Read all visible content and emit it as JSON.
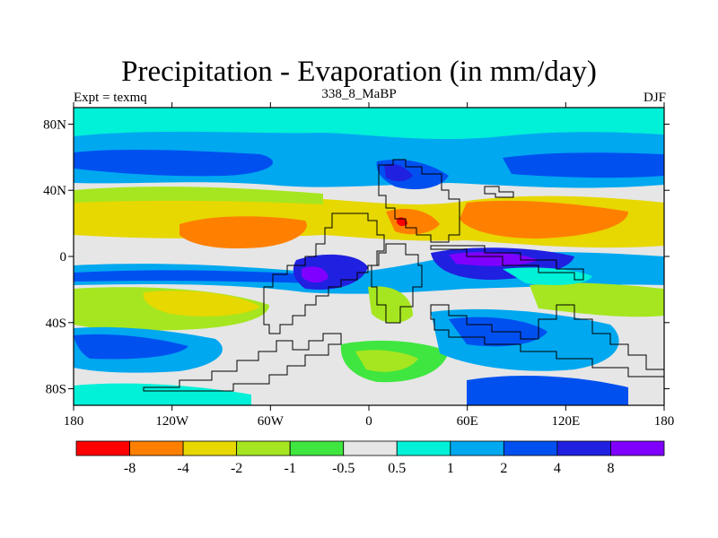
{
  "title": "Precipitation - Evaporation (in mm/day)",
  "experiment_label": "Expt = texmq",
  "run_label": "338_8_MaBP",
  "season_label": "DJF",
  "axes": {
    "x_ticks": [
      "180",
      "120W",
      "60W",
      "0",
      "60E",
      "120E",
      "180"
    ],
    "y_ticks": [
      "80N",
      "40N",
      "0",
      "40S",
      "80S"
    ]
  },
  "colorbar": {
    "labels": [
      "-8",
      "-4",
      "-2",
      "-1",
      "-0.5",
      "0.5",
      "1",
      "2",
      "4",
      "8"
    ],
    "colors": [
      "#ff0000",
      "#ff8000",
      "#e6d800",
      "#a6e620",
      "#40e640",
      "#e6e6e6",
      "#00f0d8",
      "#00a8f0",
      "#0050f0",
      "#2020e0",
      "#8000ff"
    ]
  },
  "colors": {
    "ocean_neutral": "#e6e6e6",
    "deep_blue": "#2020e0",
    "purple": "#8000ff",
    "red": "#ff0000"
  }
}
